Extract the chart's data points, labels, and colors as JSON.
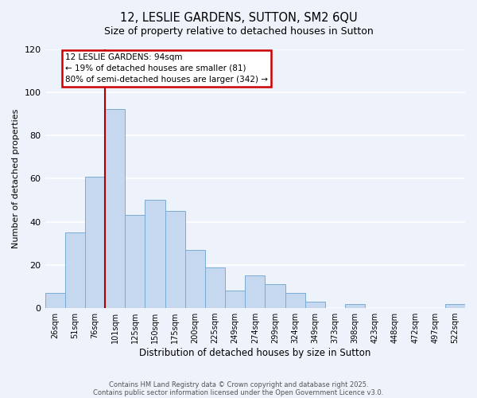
{
  "title": "12, LESLIE GARDENS, SUTTON, SM2 6QU",
  "subtitle": "Size of property relative to detached houses in Sutton",
  "xlabel": "Distribution of detached houses by size in Sutton",
  "ylabel": "Number of detached properties",
  "bar_labels": [
    "26sqm",
    "51sqm",
    "76sqm",
    "101sqm",
    "125sqm",
    "150sqm",
    "175sqm",
    "200sqm",
    "225sqm",
    "249sqm",
    "274sqm",
    "299sqm",
    "324sqm",
    "349sqm",
    "373sqm",
    "398sqm",
    "423sqm",
    "448sqm",
    "472sqm",
    "497sqm",
    "522sqm"
  ],
  "bar_values": [
    7,
    35,
    61,
    92,
    43,
    50,
    45,
    27,
    19,
    8,
    15,
    11,
    7,
    3,
    0,
    2,
    0,
    0,
    0,
    0,
    2
  ],
  "bar_color": "#c5d8f0",
  "bar_edge_color": "#7aadd4",
  "background_color": "#eef2fb",
  "grid_color": "#ffffff",
  "ylim": [
    0,
    120
  ],
  "yticks": [
    0,
    20,
    40,
    60,
    80,
    100,
    120
  ],
  "vline_color": "#aa0000",
  "annotation_title": "12 LESLIE GARDENS: 94sqm",
  "annotation_line2": "← 19% of detached houses are smaller (81)",
  "annotation_line3": "80% of semi-detached houses are larger (342) →",
  "annotation_box_color": "#ffffff",
  "annotation_box_edge": "#cc0000",
  "footer1": "Contains HM Land Registry data © Crown copyright and database right 2025.",
  "footer2": "Contains public sector information licensed under the Open Government Licence v3.0."
}
